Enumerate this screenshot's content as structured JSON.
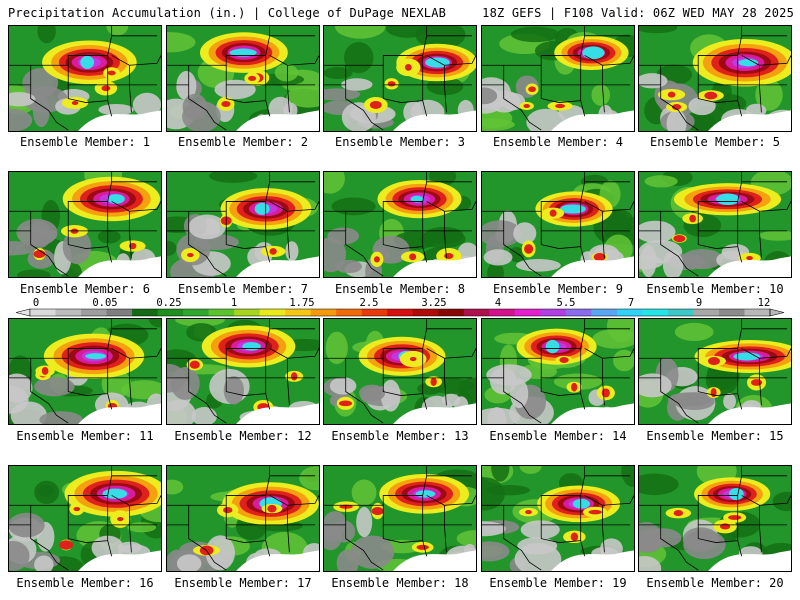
{
  "header": {
    "left": "Precipitation Accumulation (in.) | College of DuPage NEXLAB",
    "right": "18Z GEFS | F108 Valid: 06Z WED MAY 28 2025"
  },
  "member_prefix": "Ensemble Member:",
  "members": [
    1,
    2,
    3,
    4,
    5,
    6,
    7,
    8,
    9,
    10,
    11,
    12,
    13,
    14,
    15,
    16,
    17,
    18,
    19,
    20
  ],
  "colorbar": {
    "tick_labels": [
      "0",
      "0.05",
      "0.25",
      "1",
      "1.75",
      "2.5",
      "3.25",
      "4",
      "5.5",
      "7",
      "9",
      "12"
    ],
    "colors": [
      "#d9d9d9",
      "#bdbdbd",
      "#9e9e9e",
      "#7f7f7f",
      "#146b14",
      "#1f8f1f",
      "#30a830",
      "#5cc42a",
      "#a6d51f",
      "#e8ea1a",
      "#f7c615",
      "#f59a0d",
      "#f26b0a",
      "#ea3a0a",
      "#d61010",
      "#b00a0a",
      "#8a0606",
      "#b0104e",
      "#d4128e",
      "#e51ed0",
      "#b23fe6",
      "#8a6cf0",
      "#5aa6f5",
      "#30d2f5",
      "#22e6e6",
      "#3dc9c9",
      "#a8a8a8",
      "#8c8c8c",
      "#b8b8b8"
    ]
  },
  "map_colors": {
    "water": "#ffffff",
    "gray_light": "#c8c8c8",
    "gray_dark": "#8a8a8a",
    "green_dark": "#147014",
    "green": "#22962a",
    "green_light": "#62c436",
    "yellow": "#ecec1e",
    "orange": "#f5a00f",
    "red": "#e0201a",
    "maroon": "#9e0a14",
    "magenta": "#d81c9e",
    "violet": "#c238e0",
    "cyan": "#36dce6"
  }
}
